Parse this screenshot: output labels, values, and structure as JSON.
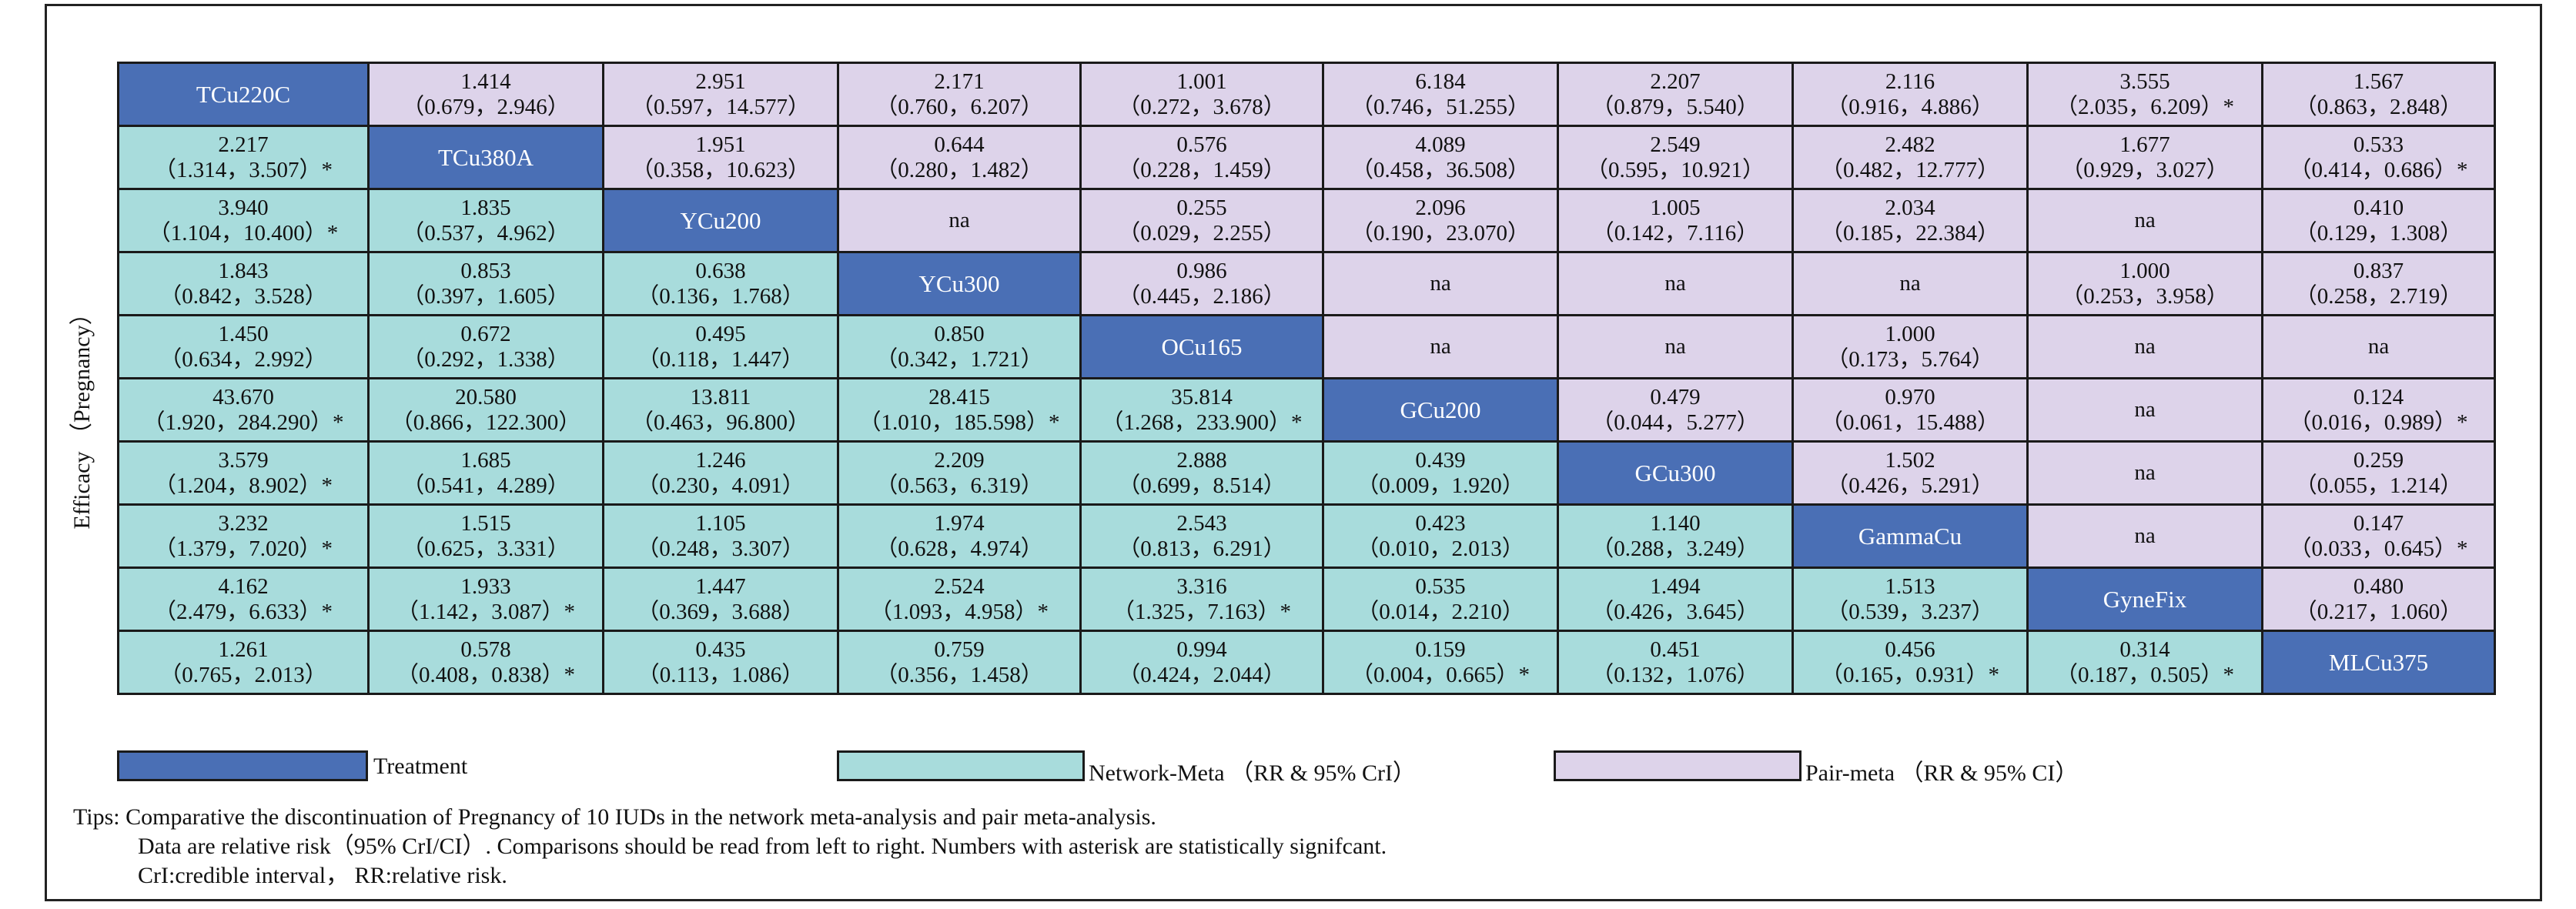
{
  "chart_data": {
    "type": "table",
    "ylabel": "Efficacy （Pregnancy）",
    "treatments": [
      "TCu220C",
      "TCu380A",
      "YCu200",
      "YCu300",
      "OCu165",
      "GCu200",
      "GCu300",
      "GammaCu",
      "GyneFix",
      "MLCu375"
    ],
    "rows": [
      [
        "TCu220C",
        [
          "1.414",
          "（0.679，2.946）"
        ],
        [
          "2.951",
          "（0.597，14.577）"
        ],
        [
          "2.171",
          "（0.760，6.207）"
        ],
        [
          "1.001",
          "（0.272，3.678）"
        ],
        [
          "6.184",
          "（0.746，51.255）"
        ],
        [
          "2.207",
          "（0.879，5.540）"
        ],
        [
          "2.116",
          "（0.916，4.886）"
        ],
        [
          "3.555",
          "（2.035，6.209）*"
        ],
        [
          "1.567",
          "（0.863，2.848）"
        ]
      ],
      [
        [
          "2.217",
          "（1.314，3.507）*"
        ],
        "TCu380A",
        [
          "1.951",
          "（0.358，10.623）"
        ],
        [
          "0.644",
          "（0.280，1.482）"
        ],
        [
          "0.576",
          "（0.228，1.459）"
        ],
        [
          "4.089",
          "（0.458，36.508）"
        ],
        [
          "2.549",
          "（0.595，10.921）"
        ],
        [
          "2.482",
          "（0.482，12.777）"
        ],
        [
          "1.677",
          "（0.929，3.027）"
        ],
        [
          "0.533",
          "（0.414，0.686）*"
        ]
      ],
      [
        [
          "3.940",
          "（1.104，10.400）*"
        ],
        [
          "1.835",
          "（0.537，4.962）"
        ],
        "YCu200",
        "na",
        [
          "0.255",
          "（0.029，2.255）"
        ],
        [
          "2.096",
          "（0.190，23.070）"
        ],
        [
          "1.005",
          "（0.142，7.116）"
        ],
        [
          "2.034",
          "（0.185，22.384）"
        ],
        "na",
        [
          "0.410",
          "（0.129，1.308）"
        ]
      ],
      [
        [
          "1.843",
          "（0.842，3.528）"
        ],
        [
          "0.853",
          "（0.397，1.605）"
        ],
        [
          "0.638",
          "（0.136，1.768）"
        ],
        "YCu300",
        [
          "0.986",
          "（0.445，2.186）"
        ],
        "na",
        "na",
        "na",
        [
          "1.000",
          "（0.253，3.958）"
        ],
        [
          "0.837",
          "（0.258，2.719）"
        ]
      ],
      [
        [
          "1.450",
          "（0.634，2.992）"
        ],
        [
          "0.672",
          "（0.292，1.338）"
        ],
        [
          "0.495",
          "（0.118，1.447）"
        ],
        [
          "0.850",
          "（0.342，1.721）"
        ],
        "OCu165",
        "na",
        "na",
        [
          "1.000",
          "（0.173，5.764）"
        ],
        "na",
        "na"
      ],
      [
        [
          "43.670",
          "（1.920，284.290）*"
        ],
        [
          "20.580",
          "（0.866，122.300）"
        ],
        [
          "13.811",
          "（0.463，96.800）"
        ],
        [
          "28.415",
          "（1.010，185.598）*"
        ],
        [
          "35.814",
          "（1.268，233.900）*"
        ],
        "GCu200",
        [
          "0.479",
          "（0.044，5.277）"
        ],
        [
          "0.970",
          "（0.061，15.488）"
        ],
        "na",
        [
          "0.124",
          "（0.016，0.989）*"
        ]
      ],
      [
        [
          "3.579",
          "（1.204，8.902）*"
        ],
        [
          "1.685",
          "（0.541，4.289）"
        ],
        [
          "1.246",
          "（0.230，4.091）"
        ],
        [
          "2.209",
          "（0.563，6.319）"
        ],
        [
          "2.888",
          "（0.699，8.514）"
        ],
        [
          "0.439",
          "（0.009，1.920）"
        ],
        "GCu300",
        [
          "1.502",
          "（0.426，5.291）"
        ],
        "na",
        [
          "0.259",
          "（0.055，1.214）"
        ]
      ],
      [
        [
          "3.232",
          "（1.379，7.020）*"
        ],
        [
          "1.515",
          "（0.625，3.331）"
        ],
        [
          "1.105",
          "（0.248，3.307）"
        ],
        [
          "1.974",
          "（0.628，4.974）"
        ],
        [
          "2.543",
          "（0.813，6.291）"
        ],
        [
          "0.423",
          "（0.010，2.013）"
        ],
        [
          "1.140",
          "（0.288，3.249）"
        ],
        "GammaCu",
        "na",
        [
          "0.147",
          "（0.033，0.645）*"
        ]
      ],
      [
        [
          "4.162",
          "（2.479，6.633）*"
        ],
        [
          "1.933",
          "（1.142，3.087）*"
        ],
        [
          "1.447",
          "（0.369，3.688）"
        ],
        [
          "2.524",
          "（1.093，4.958）*"
        ],
        [
          "3.316",
          "（1.325，7.163）*"
        ],
        [
          "0.535",
          "（0.014，2.210）"
        ],
        [
          "1.494",
          "（0.426，3.645）"
        ],
        [
          "1.513",
          "（0.539，3.237）"
        ],
        "GyneFix",
        [
          "0.480",
          "（0.217，1.060）"
        ]
      ],
      [
        [
          "1.261",
          "（0.765，2.013）"
        ],
        [
          "0.578",
          "（0.408，0.838）*"
        ],
        [
          "0.435",
          "（0.113，1.086）"
        ],
        [
          "0.759",
          "（0.356，1.458）"
        ],
        [
          "0.994",
          "（0.424，2.044）"
        ],
        [
          "0.159",
          "（0.004，0.665）*"
        ],
        [
          "0.451",
          "（0.132，1.076）"
        ],
        [
          "0.456",
          "（0.165，0.931）*"
        ],
        [
          "0.314",
          "（0.187，0.505）*"
        ],
        "MLCu375"
      ]
    ],
    "legend": [
      {
        "label": "Treatment",
        "color": "#4a6fb5"
      },
      {
        "label": "Network-Meta （RR & 95% CrI）",
        "color": "#a8dcdc"
      },
      {
        "label": "Pair-meta （RR & 95% CI）",
        "color": "#ddd3ea"
      }
    ]
  },
  "tips": {
    "line1": "Tips:  Comparative the discontinuation of Pregnancy of 10 IUDs in the network meta-analysis and pair meta-analysis.",
    "line2": "Data are relative risk（95% CrI/CI）. Comparisons should be read from left to right. Numbers with asterisk are statistically signifcant.",
    "line3": "CrI:credible interval，   RR:relative risk."
  }
}
